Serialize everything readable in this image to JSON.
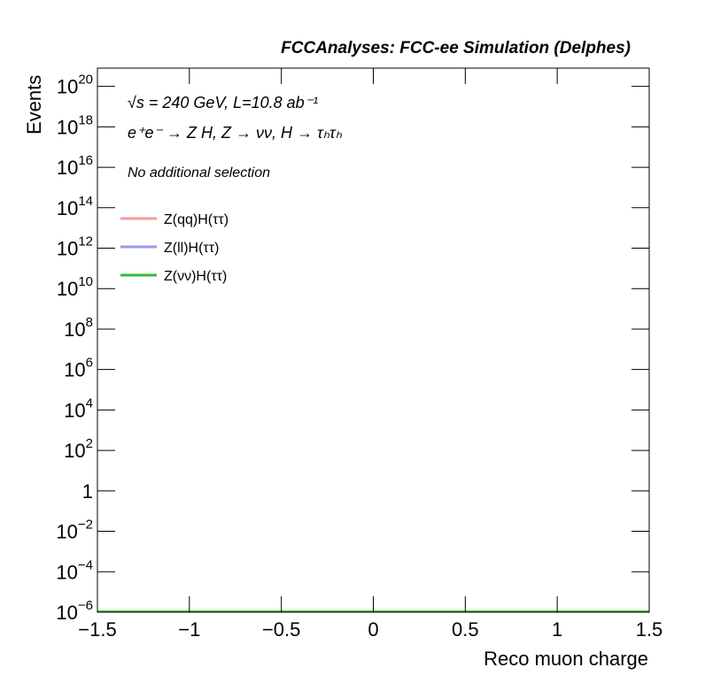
{
  "chart_data": {
    "type": "histogram",
    "title": "FCCAnalyses: FCC-ee Simulation (Delphes)",
    "annotations": [
      "√s = 240 GeV, L=10.8 ab⁻¹",
      "e⁺e⁻ → Z H, Z → νν, H → τₕτₕ",
      "No additional selection"
    ],
    "x_label": "Reco muon charge",
    "y_label": "Events",
    "log_y": true,
    "bins": [
      -1.5,
      1.5
    ],
    "series": [
      {
        "name": "Z(qq)H(ττ)",
        "color": "#f59a9a",
        "values": [
          1e-06
        ]
      },
      {
        "name": "Z(ll)H(ττ)",
        "color": "#9a9af5",
        "values": [
          1e-06
        ]
      },
      {
        "name": "Z(νν)H(ττ)",
        "color": "#33bb33",
        "values": [
          1e-06
        ]
      }
    ],
    "xlim": [
      -1.5,
      1.5
    ],
    "xticks": [
      {
        "value": -1.5,
        "label": "−1.5"
      },
      {
        "value": -1,
        "label": "−1"
      },
      {
        "value": -0.5,
        "label": "−0.5"
      },
      0,
      0.5,
      1,
      1.5
    ],
    "ylim": [
      1e-06,
      8e+20
    ],
    "yticks": [
      {
        "value": 1e-06,
        "label": "10",
        "exponent": "−6"
      },
      {
        "value": 0.0001,
        "label": "10",
        "exponent": "−4"
      },
      {
        "value": 0.01,
        "label": "10",
        "exponent": "−2"
      },
      1,
      {
        "value": 100,
        "label": "10",
        "exponent": "2"
      },
      {
        "value": 10000,
        "label": "10",
        "exponent": "4"
      },
      {
        "value": 1000000.0,
        "label": "10",
        "exponent": "6"
      },
      {
        "value": 100000000.0,
        "label": "10",
        "exponent": "8"
      },
      {
        "value": 10000000000.0,
        "label": "10",
        "exponent": "10"
      },
      {
        "value": 1000000000000.0,
        "label": "10",
        "exponent": "12"
      },
      {
        "value": 100000000000000.0,
        "label": "10",
        "exponent": "14"
      },
      {
        "value": 1e+16,
        "label": "10",
        "exponent": "16"
      },
      {
        "value": 1e+18,
        "label": "10",
        "exponent": "18"
      },
      {
        "value": 1e+20,
        "label": "10",
        "exponent": "20"
      }
    ],
    "legend": "top-left"
  }
}
